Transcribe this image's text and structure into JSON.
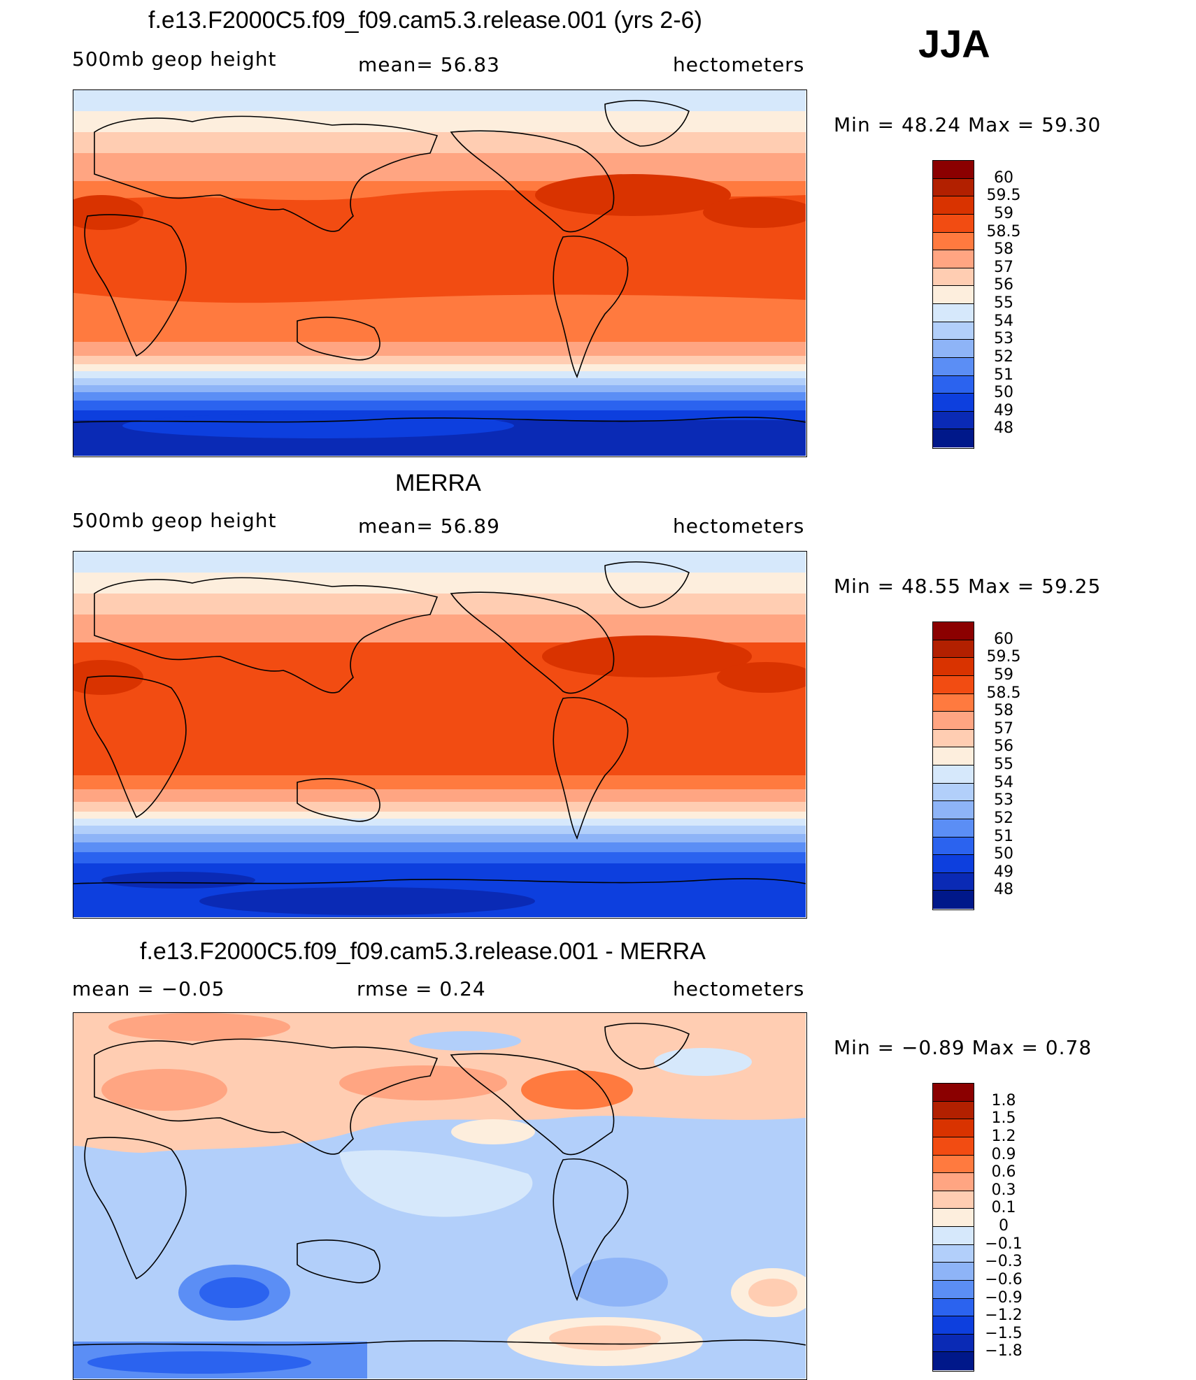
{
  "season": "JJA",
  "panels": [
    {
      "title": "f.e13.F2000C5.f09_f09.cam5.3.release.001 (yrs 2-6)",
      "left_label": "500mb  geop  height",
      "center_label": "mean=   56.83",
      "right_label": "hectometers",
      "minmax": "Min  =    48.24  Max  =    59.30",
      "levels": [
        "60",
        "59.5",
        "59",
        "58.5",
        "58",
        "57",
        "56",
        "55",
        "54",
        "53",
        "52",
        "51",
        "50",
        "49",
        "48"
      ],
      "colors": [
        "#8b0000",
        "#b22000",
        "#d93300",
        "#f24c12",
        "#ff7a3f",
        "#ffa582",
        "#ffcdb2",
        "#fdeedd",
        "#d6e8fb",
        "#b2cffa",
        "#8eb4f7",
        "#5b8ef5",
        "#2b63ef",
        "#0d3fde",
        "#0a2ab5",
        "#00188a"
      ]
    },
    {
      "title": "MERRA",
      "left_label": "500mb  geop  height",
      "center_label": "mean=   56.89",
      "right_label": "hectometers",
      "minmax": "Min  =    48.55  Max  =    59.25",
      "levels": [
        "60",
        "59.5",
        "59",
        "58.5",
        "58",
        "57",
        "56",
        "55",
        "54",
        "53",
        "52",
        "51",
        "50",
        "49",
        "48"
      ],
      "colors": [
        "#8b0000",
        "#b22000",
        "#d93300",
        "#f24c12",
        "#ff7a3f",
        "#ffa582",
        "#ffcdb2",
        "#fdeedd",
        "#d6e8fb",
        "#b2cffa",
        "#8eb4f7",
        "#5b8ef5",
        "#2b63ef",
        "#0d3fde",
        "#0a2ab5",
        "#00188a"
      ]
    },
    {
      "title": "f.e13.F2000C5.f09_f09.cam5.3.release.001 - MERRA",
      "left_label": "mean  =    −0.05",
      "center_label": "rmse  =     0.24",
      "right_label": "hectometers",
      "minmax": "Min  =    −0.89  Max  =      0.78",
      "levels": [
        "1.8",
        "1.5",
        "1.2",
        "0.9",
        "0.6",
        "0.3",
        "0.1",
        "0",
        "−0.1",
        "−0.3",
        "−0.6",
        "−0.9",
        "−1.2",
        "−1.5",
        "−1.8"
      ],
      "colors": [
        "#8b0000",
        "#b22000",
        "#d93300",
        "#f24c12",
        "#ff7a3f",
        "#ffa582",
        "#ffcdb2",
        "#fdeedd",
        "#d6e8fb",
        "#b2cffa",
        "#8eb4f7",
        "#5b8ef5",
        "#2b63ef",
        "#0d3fde",
        "#0a2ab5",
        "#00188a"
      ]
    }
  ]
}
